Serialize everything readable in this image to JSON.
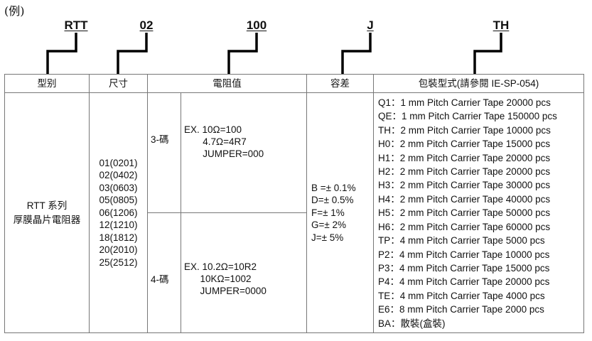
{
  "example_label": "(例)",
  "codes": [
    "RTT",
    "02",
    "100",
    "J",
    "TH"
  ],
  "headers": [
    "型别",
    "尺寸",
    "電阻值",
    "容差",
    "包裝型式(請參閱 IE-SP-054)"
  ],
  "type": {
    "line1": "RTT 系列",
    "line2": "厚膜晶片電阻器"
  },
  "sizes": [
    "01(0201)",
    "02(0402)",
    "03(0603)",
    "05(0805)",
    "06(1206)",
    "12(1210)",
    "18(1812)",
    "20(2010)",
    "25(2512)"
  ],
  "resistance": {
    "three_digit": {
      "label": "3-碼",
      "lines": [
        "EX. 10Ω=100",
        "       4.7Ω=4R7",
        "       JUMPER=000"
      ]
    },
    "four_digit": {
      "label": "4-碼",
      "lines": [
        "EX. 10.2Ω=10R2",
        "      10KΩ=1002",
        "      JUMPER=0000"
      ]
    }
  },
  "tolerance": [
    "B =± 0.1%",
    "D=± 0.5%",
    "F=± 1%",
    "G=± 2%",
    "J=± 5%"
  ],
  "packaging": [
    "Q1：1 mm Pitch Carrier Tape 20000 pcs",
    "QE：1 mm Pitch Carrier Tape 150000 pcs",
    "TH：2 mm Pitch Carrier Tape 10000 pcs",
    "H0：2 mm Pitch Carrier Tape 15000 pcs",
    "H1：2 mm Pitch Carrier Tape 20000 pcs",
    "H2：2 mm Pitch Carrier Tape 20000 pcs",
    "H3：2 mm Pitch Carrier Tape 30000 pcs",
    "H4：2 mm Pitch Carrier Tape 40000 pcs",
    "H5：2 mm Pitch Carrier Tape 50000 pcs",
    "H6：2 mm Pitch Carrier Tape 60000 pcs",
    "TP：4 mm Pitch Carrier Tape 5000 pcs",
    "P2：4 mm Pitch Carrier Tape 10000 pcs",
    "P3：4 mm Pitch Carrier Tape 15000 pcs",
    "P4：4 mm Pitch Carrier Tape 20000 pcs",
    "TE：4 mm Pitch Carrier Tape 4000 pcs",
    "E6：8 mm Pitch Carrier Tape 2000 pcs",
    "BA：散裝(盒裝)"
  ]
}
